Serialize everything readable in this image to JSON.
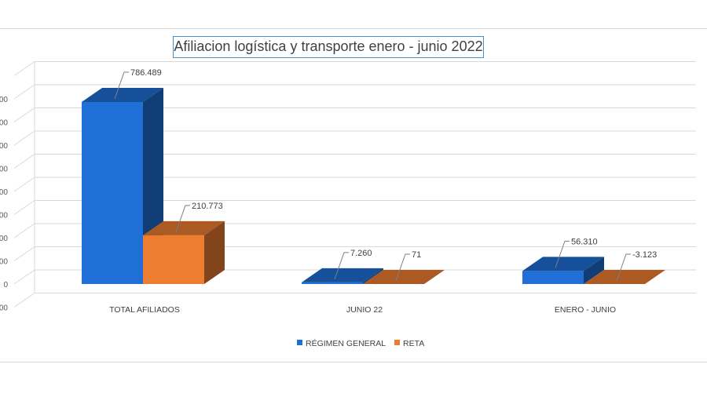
{
  "chart_data": {
    "type": "bar",
    "title": "Afiliacion logística y transporte enero - junio 2022",
    "categories": [
      "TOTAL AFILIADOS",
      "JUNIO 22",
      "ENERO - JUNIO"
    ],
    "series": [
      {
        "name": "RÉGIMEN GENERAL",
        "values": [
          786489,
          7260,
          56310
        ],
        "labels": [
          "786.489",
          "7.260",
          "56.310"
        ],
        "color": "#1f6fd6"
      },
      {
        "name": "RETA",
        "values": [
          210773,
          71,
          -3123
        ],
        "labels": [
          "210.773",
          "71",
          "-3.123"
        ],
        "color": "#ed7d31"
      }
    ],
    "legend_position": "bottom",
    "grid": true,
    "three_d": true,
    "ylim": [
      -100000,
      900000
    ],
    "y_tick_labels": [
      "00",
      "00",
      "00",
      "00",
      "00",
      "00",
      "00",
      "00",
      "0",
      "00"
    ]
  }
}
